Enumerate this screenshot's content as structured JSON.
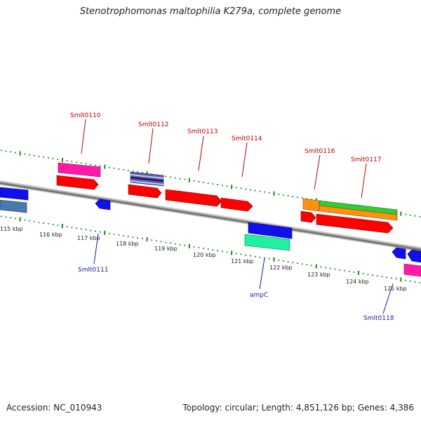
{
  "title": "Stenotrophomonas maltophilia K279a, complete genome",
  "footer": {
    "accession": "Accession: NC_010943",
    "summary": "Topology: circular; Length: 4,851,126 bp; Genes: 4,386"
  },
  "kbp_labels": [
    "115 kbp",
    "116 kbp",
    "117 kbp",
    "118 kbp",
    "119 kbp",
    "120 kbp",
    "121 kbp",
    "122 kbp",
    "123 kbp",
    "124 kbp",
    "125 kbp"
  ],
  "gene_labels": {
    "smlt0110": "Smlt0110",
    "smlt0111": "Smlt0111",
    "smlt0112": "Smlt0112",
    "smlt0113": "Smlt0113",
    "smlt0114": "Smlt0114",
    "ampc": "ampC",
    "smlt0116": "Smlt0116",
    "smlt0117": "Smlt0117",
    "smlt0118": "Smlt0118"
  },
  "colors": {
    "backbone": "#808080",
    "tick": "#1a8a1a",
    "label_forward": "#c00000",
    "label_reverse": "#1a1aa0",
    "gene_red": "#ff0000",
    "gene_blue": "#1010ee",
    "gene_magenta": "#ff1aa8",
    "gene_orange": "#ff9010",
    "gene_green": "#33cc33",
    "gene_teal": "#20f0a0",
    "gene_steel": "#4a78b0"
  }
}
